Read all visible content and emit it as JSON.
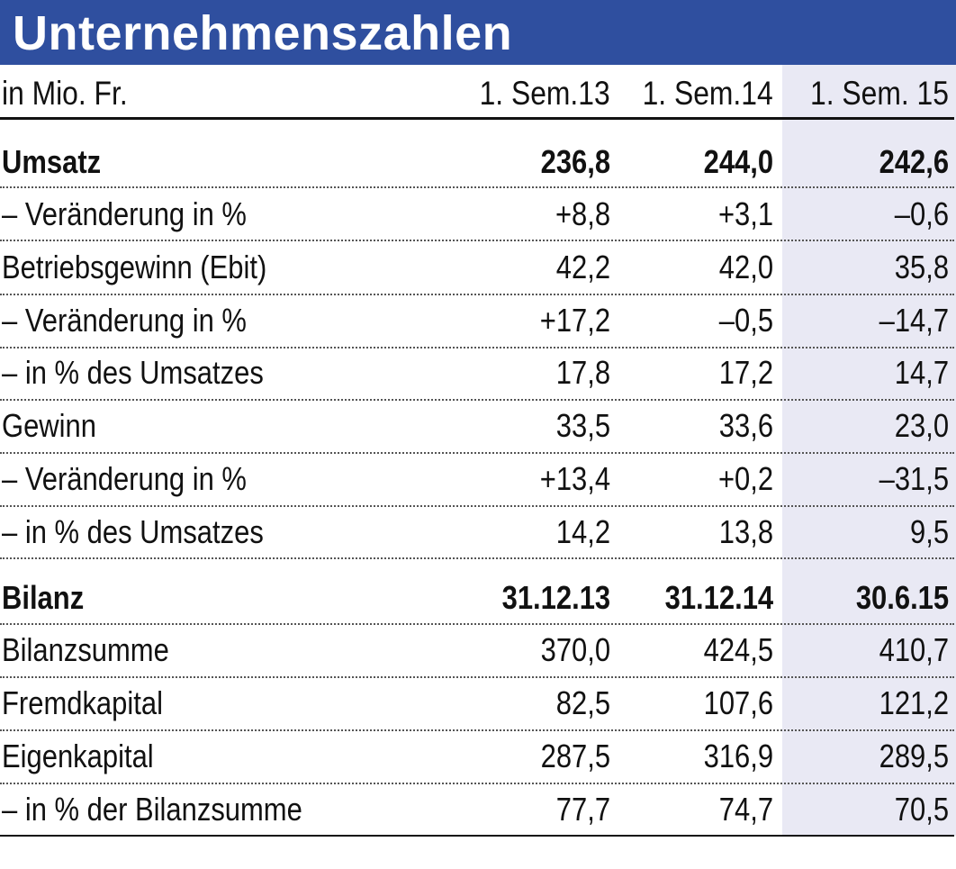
{
  "title": "Unternehmenszahlen",
  "header": {
    "unit": "in Mio. Fr.",
    "columns": [
      "1. Sem.13",
      "1. Sem.14",
      "1. Sem. 15"
    ]
  },
  "colors": {
    "title_bar": "#2f4f9f",
    "title_text": "#ffffff",
    "highlight_column": "#e9e9f4",
    "text": "#111111"
  },
  "rows": [
    {
      "label": "Umsatz",
      "values": [
        "236,8",
        "244,0",
        "242,6"
      ],
      "bold": true
    },
    {
      "label": "– Veränderung in %",
      "values": [
        "+8,8",
        "+3,1",
        "–0,6"
      ]
    },
    {
      "label": "Betriebsgewinn (Ebit)",
      "values": [
        "42,2",
        "42,0",
        "35,8"
      ]
    },
    {
      "label": "– Veränderung in %",
      "values": [
        "+17,2",
        "–0,5",
        "–14,7"
      ]
    },
    {
      "label": "– in % des Umsatzes",
      "values": [
        "17,8",
        "17,2",
        "14,7"
      ]
    },
    {
      "label": "Gewinn",
      "values": [
        "33,5",
        "33,6",
        "23,0"
      ]
    },
    {
      "label": "– Veränderung in %",
      "values": [
        "+13,4",
        "+0,2",
        "–31,5"
      ]
    },
    {
      "label": "– in % des Umsatzes",
      "values": [
        "14,2",
        "13,8",
        "9,5"
      ]
    },
    {
      "label": "Bilanz",
      "values": [
        "31.12.13",
        "31.12.14",
        "30.6.15"
      ],
      "bold": true
    },
    {
      "label": "Bilanzsumme",
      "values": [
        "370,0",
        "424,5",
        "410,7"
      ]
    },
    {
      "label": "Fremdkapital",
      "values": [
        "82,5",
        "107,6",
        "121,2"
      ]
    },
    {
      "label": "Eigenkapital",
      "values": [
        "287,5",
        "316,9",
        "289,5"
      ]
    },
    {
      "label": "– in % der Bilanzsumme",
      "values": [
        "77,7",
        "74,7",
        "70,5"
      ]
    }
  ]
}
